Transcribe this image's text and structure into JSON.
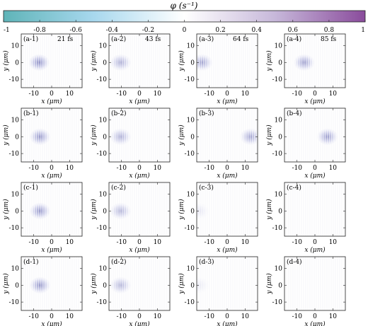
{
  "colorbar": {
    "label": "φ (s⁻¹)",
    "ticks": [
      "-1",
      "-0.8",
      "-0.6",
      "-0.4",
      "-0.2",
      "0",
      "0.2",
      "0.4",
      "0.6",
      "0.8",
      "1"
    ],
    "colors": [
      "#5fb4b8",
      "#a8d8ee",
      "#ffffff",
      "#c7b8da",
      "#8a4c9c"
    ]
  },
  "chart_data": {
    "type": "heatmap",
    "rows": 4,
    "cols": 4,
    "xlabel": "x (μm)",
    "ylabel": "y (μm)",
    "xticks": [
      "-10",
      "0",
      "10"
    ],
    "yticks": [
      "10",
      "0",
      "-10"
    ],
    "xlim": [
      -17,
      17
    ],
    "ylim": [
      -15,
      17
    ],
    "clim": [
      -1,
      1
    ],
    "panels": [
      {
        "label": "(a-1)",
        "time": "21 fs",
        "blob_x": -7,
        "strength": 0.75
      },
      {
        "label": "(a-2)",
        "time": "43 fs",
        "blob_x": -10.5,
        "strength": 0.55
      },
      {
        "label": "(a-3)",
        "time": "64 fs",
        "blob_x": -14,
        "strength": 0.6
      },
      {
        "label": "(a-4)",
        "time": "85 fs",
        "blob_x": -6,
        "strength": 0.65
      },
      {
        "label": "(b-1)",
        "time": "",
        "blob_x": -6.5,
        "strength": 0.7
      },
      {
        "label": "(b-2)",
        "time": "",
        "blob_x": -10.5,
        "strength": 0.55
      },
      {
        "label": "(b-3)",
        "time": "",
        "blob_x": 13,
        "strength": 0.6
      },
      {
        "label": "(b-4)",
        "time": "",
        "blob_x": 7,
        "strength": 0.65
      },
      {
        "label": "(c-1)",
        "time": "",
        "blob_x": -6.5,
        "strength": 0.7
      },
      {
        "label": "(c-2)",
        "time": "",
        "blob_x": -10.5,
        "strength": 0.5
      },
      {
        "label": "(c-3)",
        "time": "",
        "blob_x": -16,
        "strength": 0.15
      },
      {
        "label": "(c-4)",
        "time": "",
        "blob_x": null,
        "strength": 0
      },
      {
        "label": "(d-1)",
        "time": "",
        "blob_x": -6.5,
        "strength": 0.7
      },
      {
        "label": "(d-2)",
        "time": "",
        "blob_x": -10.5,
        "strength": 0.5
      },
      {
        "label": "(d-3)",
        "time": "",
        "blob_x": -16,
        "strength": 0.12
      },
      {
        "label": "(d-4)",
        "time": "",
        "blob_x": null,
        "strength": 0
      }
    ]
  }
}
